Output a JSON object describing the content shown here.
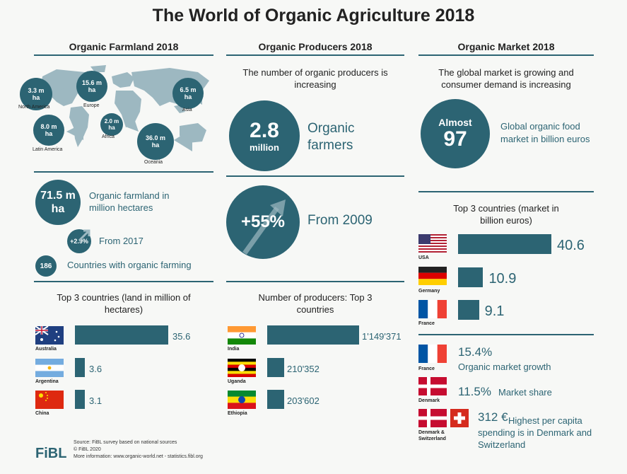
{
  "title": "The World of Organic Agriculture 2018",
  "colors": {
    "accent": "#2c6473",
    "map": "#9db8c1",
    "text": "#222222",
    "background": "#f7f8f6"
  },
  "farmland": {
    "heading": "Organic Farmland 2018",
    "regions": [
      {
        "value": "3.3 m ha",
        "name": "North America"
      },
      {
        "value": "15.6 m ha",
        "name": "Europe"
      },
      {
        "value": "6.5 m ha",
        "name": "Asia"
      },
      {
        "value": "8.0 m ha",
        "name": "Latin America"
      },
      {
        "value": "2.0 m ha",
        "name": "Africa"
      },
      {
        "value": "36.0 m ha",
        "name": "Oceania"
      }
    ],
    "total_value": "71.5 m ha",
    "total_label": "Organic farmland in million hectares",
    "growth_value": "+2.9%",
    "growth_label": "From 2017",
    "countries_value": "186",
    "countries_label": "Countries with organic farming",
    "top_heading": "Top 3 countries (land in million of hectares)"
  },
  "producers": {
    "heading": "Organic Producers 2018",
    "subtitle": "The number of organic producers is increasing",
    "farmers_value": "2.8",
    "farmers_unit": "million",
    "farmers_label": "Organic farmers",
    "growth_value": "+55%",
    "growth_label": "From 2009",
    "top_heading": "Number of producers: Top 3 countries"
  },
  "market": {
    "heading": "Organic Market 2018",
    "subtitle": "The global market is growing and consumer demand is increasing",
    "almost_label": "Almost",
    "almost_value": "97",
    "almost_text": "Global organic food market in billion euros",
    "top_heading": "Top 3 countries (market in billion euros)",
    "growth_value": "15.4%",
    "growth_label": "Organic market growth",
    "growth_country": "France",
    "share_value": "11.5%",
    "share_label": "Market share",
    "share_country": "Denmark",
    "capita_value": "312 €",
    "capita_label": "Highest per capita spending is in Denmark and Switzerland",
    "capita_country": "Denmark & Switzerland"
  },
  "footer": {
    "logo": "FiBL",
    "line1": "Source: FiBL survey based on national sources",
    "line2": "© FiBL 2020",
    "line3": "More information: www.organic-world.net - statistics.fibl.org"
  },
  "chart_data": [
    {
      "type": "bar",
      "title": "Top 3 countries (land in million of hectares)",
      "categories": [
        "Australia",
        "Argentina",
        "China"
      ],
      "values": [
        35.6,
        3.6,
        3.1
      ],
      "labels": [
        "35.6",
        "3.6",
        "3.1"
      ]
    },
    {
      "type": "bar",
      "title": "Number of producers: Top 3 countries",
      "categories": [
        "India",
        "Uganda",
        "Ethiopia"
      ],
      "values": [
        1149371,
        210352,
        203602
      ],
      "labels": [
        "1'149'371",
        "210'352",
        "203'602"
      ]
    },
    {
      "type": "bar",
      "title": "Top 3 countries (market in billion euros)",
      "categories": [
        "USA",
        "Germany",
        "France"
      ],
      "values": [
        40.6,
        10.9,
        9.1
      ],
      "labels": [
        "40.6",
        "10.9",
        "9.1"
      ]
    }
  ]
}
